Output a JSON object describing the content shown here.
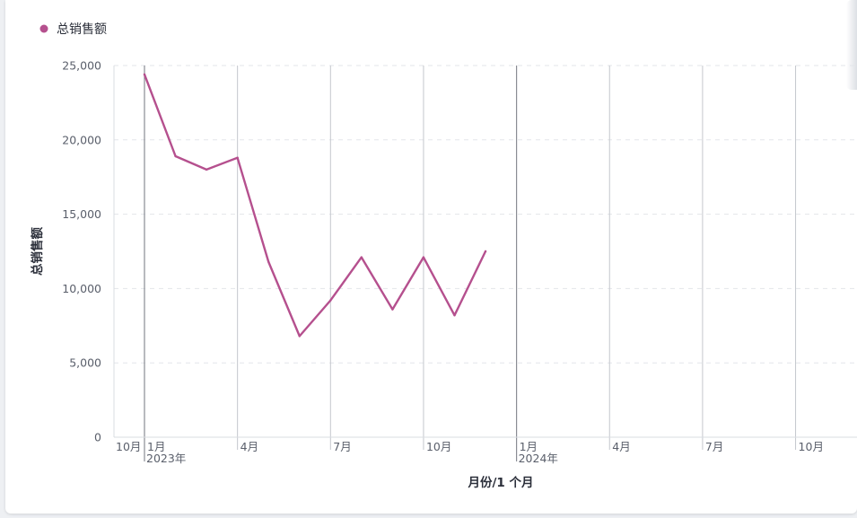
{
  "legend": {
    "label": "总销售额",
    "color": "#b5508e"
  },
  "chart_data": {
    "type": "line",
    "xlabel": "月份/1 个月",
    "ylabel": "总销售额",
    "ylim": [
      0,
      25000
    ],
    "y_ticks": [
      "0",
      "5,000",
      "10,000",
      "15,000",
      "20,000",
      "25,000"
    ],
    "x_range": [
      "2022-10",
      "2024-10"
    ],
    "x_ticks": [
      {
        "month": "2022-10",
        "label": "10月",
        "year": ""
      },
      {
        "month": "2023-01",
        "label": "1月",
        "year": "2023年"
      },
      {
        "month": "2023-04",
        "label": "4月",
        "year": ""
      },
      {
        "month": "2023-07",
        "label": "7月",
        "year": ""
      },
      {
        "month": "2023-10",
        "label": "10月",
        "year": ""
      },
      {
        "month": "2024-01",
        "label": "1月",
        "year": "2024年"
      },
      {
        "month": "2024-04",
        "label": "4月",
        "year": ""
      },
      {
        "month": "2024-07",
        "label": "7月",
        "year": ""
      },
      {
        "month": "2024-10",
        "label": "10月",
        "year": ""
      }
    ],
    "grid": true,
    "legend_position": "top-left",
    "series": [
      {
        "name": "总销售额",
        "color": "#b5508e",
        "x": [
          "2023-01",
          "2023-02",
          "2023-03",
          "2023-04",
          "2023-05",
          "2023-06",
          "2023-07",
          "2023-08",
          "2023-09",
          "2023-10",
          "2023-11",
          "2023-12"
        ],
        "values": [
          24400,
          18900,
          18000,
          18800,
          11800,
          6800,
          9200,
          12100,
          8600,
          12100,
          8200,
          12500
        ]
      }
    ]
  }
}
